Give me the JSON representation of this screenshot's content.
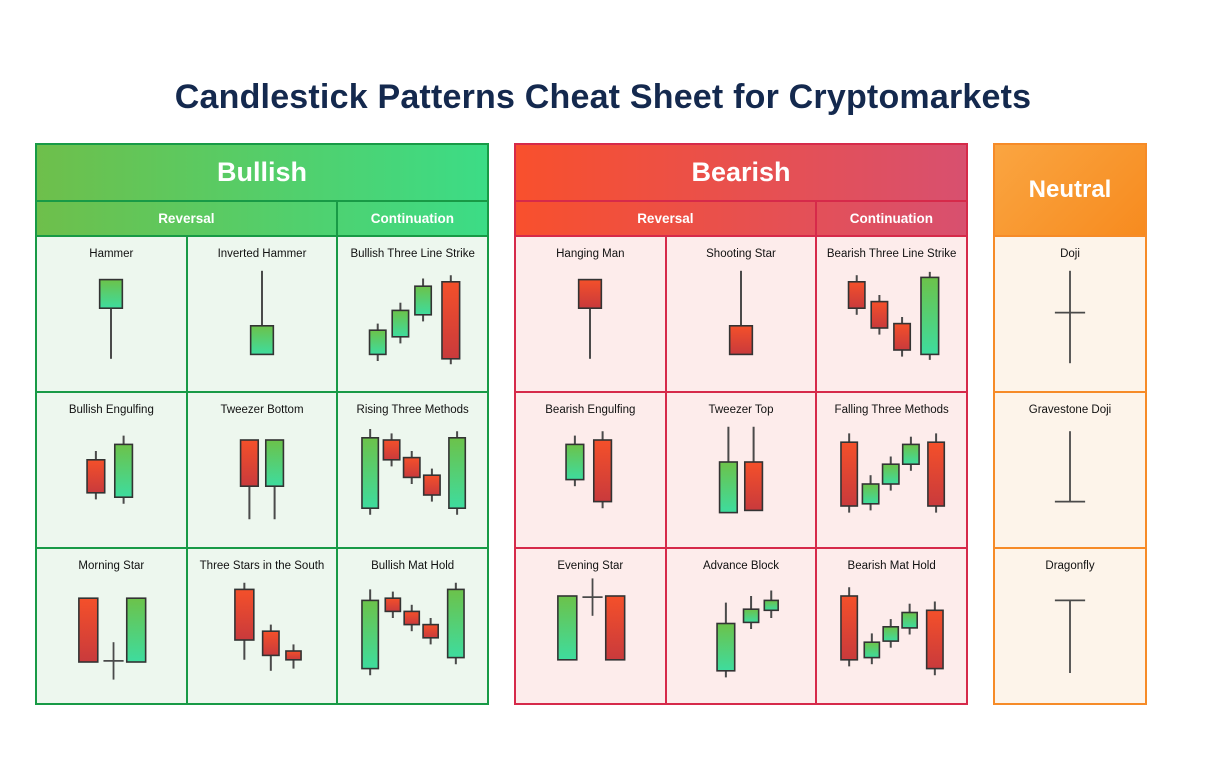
{
  "title": "Candlestick Patterns Cheat Sheet for Cryptomarkets",
  "colors": {
    "title_text": "#14294e",
    "candle_green_top": "#6cc24a",
    "candle_green_bottom": "#3edc9e",
    "candle_red_top": "#f4502a",
    "candle_red_bottom": "#c93a3c",
    "candle_border": "#333333",
    "wick": "#4a4a4a"
  },
  "sections": [
    {
      "id": "bullish",
      "label": "Bullish",
      "header_gradient": [
        "#6ebf4b",
        "#3cdc86"
      ],
      "border": "#189a46",
      "cell_bg": "#edf7ee",
      "subheaders": [
        {
          "label": "Reversal",
          "span": 2
        },
        {
          "label": "Continuation",
          "span": 1
        }
      ],
      "patterns": [
        {
          "name": "Hammer",
          "candles": [
            {
              "type": "candle",
              "x": 50,
              "w": 18,
              "body": [
                16,
                42
              ],
              "wick": [
                16,
                88
              ],
              "color": "green"
            }
          ]
        },
        {
          "name": "Inverted Hammer",
          "candles": [
            {
              "type": "candle",
              "x": 50,
              "w": 18,
              "body": [
                58,
                84
              ],
              "wick": [
                8,
                84
              ],
              "color": "green"
            }
          ]
        },
        {
          "name": "Bullish Three Line Strike",
          "candles": [
            {
              "type": "candle",
              "x": 22,
              "w": 13,
              "body": [
                62,
                84
              ],
              "wick": [
                56,
                90
              ],
              "color": "green"
            },
            {
              "type": "candle",
              "x": 40,
              "w": 13,
              "body": [
                44,
                68
              ],
              "wick": [
                37,
                74
              ],
              "color": "green"
            },
            {
              "type": "candle",
              "x": 58,
              "w": 13,
              "body": [
                22,
                48
              ],
              "wick": [
                15,
                54
              ],
              "color": "green"
            },
            {
              "type": "candle",
              "x": 80,
              "w": 14,
              "body": [
                18,
                88
              ],
              "wick": [
                12,
                93
              ],
              "color": "red"
            }
          ]
        },
        {
          "name": "Bullish Engulfing",
          "candles": [
            {
              "type": "candle",
              "x": 38,
              "w": 14,
              "body": [
                38,
                68
              ],
              "wick": [
                30,
                74
              ],
              "color": "red"
            },
            {
              "type": "candle",
              "x": 60,
              "w": 14,
              "body": [
                24,
                72
              ],
              "wick": [
                16,
                78
              ],
              "color": "green"
            }
          ]
        },
        {
          "name": "Tweezer Bottom",
          "candles": [
            {
              "type": "candle",
              "x": 40,
              "w": 14,
              "body": [
                20,
                62
              ],
              "wick": [
                20,
                92
              ],
              "color": "red"
            },
            {
              "type": "candle",
              "x": 60,
              "w": 14,
              "body": [
                20,
                62
              ],
              "wick": [
                20,
                92
              ],
              "color": "green"
            }
          ]
        },
        {
          "name": "Rising Three Methods",
          "candles": [
            {
              "type": "candle",
              "x": 16,
              "w": 13,
              "body": [
                18,
                82
              ],
              "wick": [
                10,
                88
              ],
              "color": "green"
            },
            {
              "type": "candle",
              "x": 33,
              "w": 13,
              "body": [
                20,
                38
              ],
              "wick": [
                14,
                44
              ],
              "color": "red"
            },
            {
              "type": "candle",
              "x": 49,
              "w": 13,
              "body": [
                36,
                54
              ],
              "wick": [
                30,
                60
              ],
              "color": "red"
            },
            {
              "type": "candle",
              "x": 65,
              "w": 13,
              "body": [
                52,
                70
              ],
              "wick": [
                46,
                76
              ],
              "color": "red"
            },
            {
              "type": "candle",
              "x": 85,
              "w": 13,
              "body": [
                18,
                82
              ],
              "wick": [
                12,
                88
              ],
              "color": "green"
            }
          ]
        },
        {
          "name": "Morning Star",
          "candles": [
            {
              "type": "candle",
              "x": 32,
              "w": 15,
              "body": [
                22,
                80
              ],
              "wick": [
                22,
                80
              ],
              "color": "red"
            },
            {
              "type": "cross",
              "x": 52,
              "line": [
                62,
                96
              ],
              "bar": 79,
              "half": 8
            },
            {
              "type": "candle",
              "x": 70,
              "w": 15,
              "body": [
                22,
                80
              ],
              "wick": [
                22,
                80
              ],
              "color": "green"
            }
          ]
        },
        {
          "name": "Three Stars in the South",
          "candles": [
            {
              "type": "candle",
              "x": 36,
              "w": 15,
              "body": [
                14,
                60
              ],
              "wick": [
                8,
                78
              ],
              "color": "red"
            },
            {
              "type": "candle",
              "x": 57,
              "w": 13,
              "body": [
                52,
                74
              ],
              "wick": [
                46,
                88
              ],
              "color": "red"
            },
            {
              "type": "candle",
              "x": 75,
              "w": 12,
              "body": [
                70,
                78
              ],
              "wick": [
                64,
                86
              ],
              "color": "red"
            }
          ]
        },
        {
          "name": "Bullish Mat Hold",
          "candles": [
            {
              "type": "candle",
              "x": 16,
              "w": 13,
              "body": [
                24,
                86
              ],
              "wick": [
                14,
                92
              ],
              "color": "green"
            },
            {
              "type": "candle",
              "x": 34,
              "w": 12,
              "body": [
                22,
                34
              ],
              "wick": [
                16,
                40
              ],
              "color": "red"
            },
            {
              "type": "candle",
              "x": 49,
              "w": 12,
              "body": [
                34,
                46
              ],
              "wick": [
                28,
                52
              ],
              "color": "red"
            },
            {
              "type": "candle",
              "x": 64,
              "w": 12,
              "body": [
                46,
                58
              ],
              "wick": [
                40,
                64
              ],
              "color": "red"
            },
            {
              "type": "candle",
              "x": 84,
              "w": 13,
              "body": [
                14,
                76
              ],
              "wick": [
                8,
                82
              ],
              "color": "green"
            }
          ]
        }
      ]
    },
    {
      "id": "bearish",
      "label": "Bearish",
      "header_gradient": [
        "#f8502d",
        "#d8506f"
      ],
      "border": "#d62a4a",
      "cell_bg": "#fdeceb",
      "subheaders": [
        {
          "label": "Reversal",
          "span": 2
        },
        {
          "label": "Continuation",
          "span": 1
        }
      ],
      "patterns": [
        {
          "name": "Hanging Man",
          "candles": [
            {
              "type": "candle",
              "x": 50,
              "w": 18,
              "body": [
                16,
                42
              ],
              "wick": [
                16,
                88
              ],
              "color": "red"
            }
          ]
        },
        {
          "name": "Shooting Star",
          "candles": [
            {
              "type": "candle",
              "x": 50,
              "w": 18,
              "body": [
                58,
                84
              ],
              "wick": [
                8,
                84
              ],
              "color": "red"
            }
          ]
        },
        {
          "name": "Bearish Three Line Strike",
          "candles": [
            {
              "type": "candle",
              "x": 22,
              "w": 13,
              "body": [
                18,
                42
              ],
              "wick": [
                12,
                48
              ],
              "color": "red"
            },
            {
              "type": "candle",
              "x": 40,
              "w": 13,
              "body": [
                36,
                60
              ],
              "wick": [
                30,
                66
              ],
              "color": "red"
            },
            {
              "type": "candle",
              "x": 58,
              "w": 13,
              "body": [
                56,
                80
              ],
              "wick": [
                50,
                86
              ],
              "color": "red"
            },
            {
              "type": "candle",
              "x": 80,
              "w": 14,
              "body": [
                14,
                84
              ],
              "wick": [
                9,
                89
              ],
              "color": "green"
            }
          ]
        },
        {
          "name": "Bearish Engulfing",
          "candles": [
            {
              "type": "candle",
              "x": 38,
              "w": 14,
              "body": [
                24,
                56
              ],
              "wick": [
                16,
                62
              ],
              "color": "green"
            },
            {
              "type": "candle",
              "x": 60,
              "w": 14,
              "body": [
                20,
                76
              ],
              "wick": [
                12,
                82
              ],
              "color": "red"
            }
          ]
        },
        {
          "name": "Tweezer Top",
          "candles": [
            {
              "type": "candle",
              "x": 40,
              "w": 14,
              "body": [
                40,
                86
              ],
              "wick": [
                8,
                86
              ],
              "color": "green"
            },
            {
              "type": "candle",
              "x": 60,
              "w": 14,
              "body": [
                40,
                84
              ],
              "wick": [
                8,
                84
              ],
              "color": "red"
            }
          ]
        },
        {
          "name": "Falling Three Methods",
          "candles": [
            {
              "type": "candle",
              "x": 16,
              "w": 13,
              "body": [
                22,
                80
              ],
              "wick": [
                14,
                86
              ],
              "color": "red"
            },
            {
              "type": "candle",
              "x": 33,
              "w": 13,
              "body": [
                60,
                78
              ],
              "wick": [
                52,
                84
              ],
              "color": "green"
            },
            {
              "type": "candle",
              "x": 49,
              "w": 13,
              "body": [
                42,
                60
              ],
              "wick": [
                35,
                66
              ],
              "color": "green"
            },
            {
              "type": "candle",
              "x": 65,
              "w": 13,
              "body": [
                24,
                42
              ],
              "wick": [
                17,
                48
              ],
              "color": "green"
            },
            {
              "type": "candle",
              "x": 85,
              "w": 13,
              "body": [
                22,
                80
              ],
              "wick": [
                14,
                86
              ],
              "color": "red"
            }
          ]
        },
        {
          "name": "Evening Star",
          "candles": [
            {
              "type": "candle",
              "x": 32,
              "w": 15,
              "body": [
                20,
                78
              ],
              "wick": [
                20,
                78
              ],
              "color": "green"
            },
            {
              "type": "cross",
              "x": 52,
              "line": [
                4,
                38
              ],
              "bar": 21,
              "half": 8
            },
            {
              "type": "candle",
              "x": 70,
              "w": 15,
              "body": [
                20,
                78
              ],
              "wick": [
                20,
                78
              ],
              "color": "red"
            }
          ]
        },
        {
          "name": "Advance Block",
          "candles": [
            {
              "type": "candle",
              "x": 38,
              "w": 14,
              "body": [
                45,
                88
              ],
              "wick": [
                26,
                94
              ],
              "color": "green"
            },
            {
              "type": "candle",
              "x": 58,
              "w": 12,
              "body": [
                32,
                44
              ],
              "wick": [
                20,
                50
              ],
              "color": "green"
            },
            {
              "type": "candle",
              "x": 74,
              "w": 11,
              "body": [
                24,
                33
              ],
              "wick": [
                15,
                40
              ],
              "color": "green"
            }
          ]
        },
        {
          "name": "Bearish Mat Hold",
          "candles": [
            {
              "type": "candle",
              "x": 16,
              "w": 13,
              "body": [
                20,
                78
              ],
              "wick": [
                12,
                84
              ],
              "color": "red"
            },
            {
              "type": "candle",
              "x": 34,
              "w": 12,
              "body": [
                62,
                76
              ],
              "wick": [
                54,
                82
              ],
              "color": "green"
            },
            {
              "type": "candle",
              "x": 49,
              "w": 12,
              "body": [
                48,
                61
              ],
              "wick": [
                41,
                67
              ],
              "color": "green"
            },
            {
              "type": "candle",
              "x": 64,
              "w": 12,
              "body": [
                35,
                49
              ],
              "wick": [
                27,
                55
              ],
              "color": "green"
            },
            {
              "type": "candle",
              "x": 84,
              "w": 13,
              "body": [
                33,
                86
              ],
              "wick": [
                25,
                92
              ],
              "color": "red"
            }
          ]
        }
      ]
    },
    {
      "id": "neutral",
      "label": "Neutral",
      "header_gradient": [
        "#faa541",
        "#f78b1f"
      ],
      "border": "#f68b28",
      "cell_bg": "#fdf4ea",
      "subheaders": [],
      "patterns": [
        {
          "name": "Doji",
          "candles": [
            {
              "type": "cross",
              "x": 50,
              "line": [
                8,
                92
              ],
              "bar": 46,
              "half": 12
            }
          ]
        },
        {
          "name": "Gravestone Doji",
          "candles": [
            {
              "type": "cross",
              "x": 50,
              "line": [
                12,
                76
              ],
              "bar": 76,
              "half": 12
            }
          ]
        },
        {
          "name": "Dragonfly",
          "candles": [
            {
              "type": "cross",
              "x": 50,
              "line": [
                24,
                90
              ],
              "bar": 24,
              "half": 12
            }
          ]
        }
      ]
    }
  ]
}
